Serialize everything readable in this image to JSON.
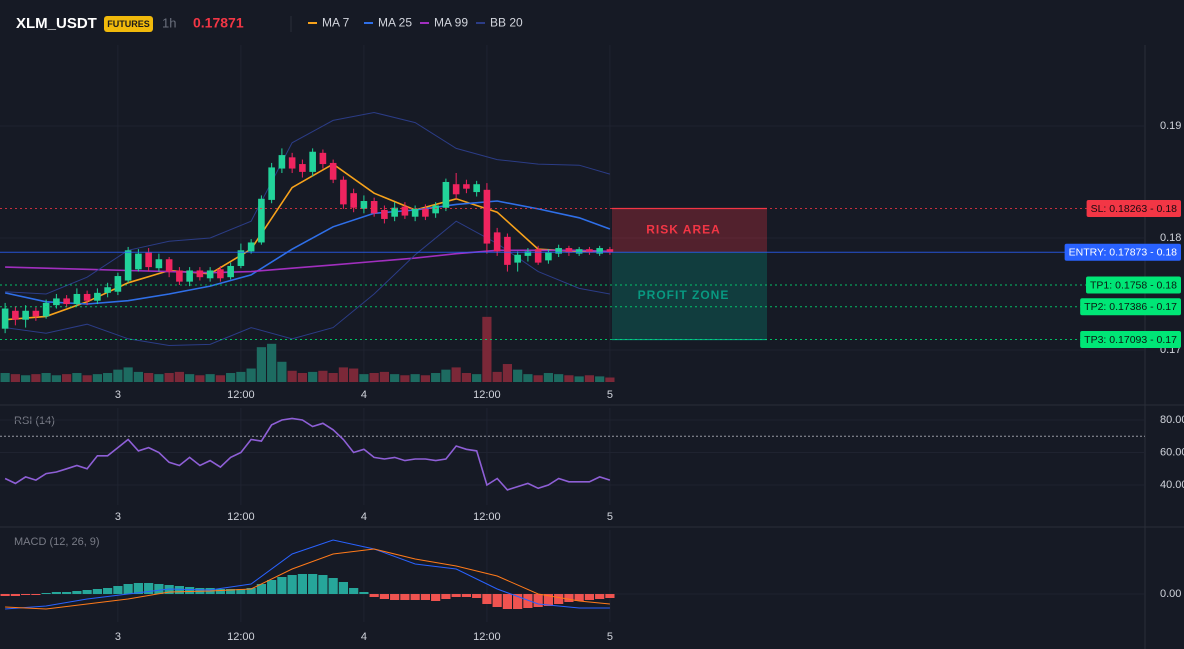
{
  "chart_data": [
    {
      "type": "candlestick",
      "title": "XLM_USDT",
      "badge": "FUTURES",
      "interval": "1h",
      "last_price": "0.17871",
      "xlim": [
        -0.5,
        111.2
      ],
      "xticks": [
        {
          "value": 11,
          "label": "3"
        },
        {
          "value": 23,
          "label": "12:00"
        },
        {
          "value": 35,
          "label": "4"
        },
        {
          "value": 47,
          "label": "12:00"
        },
        {
          "value": 59,
          "label": "5"
        }
      ],
      "ylim": [
        0.16714,
        0.19723
      ],
      "yticks": [
        0.17,
        0.18,
        0.19
      ],
      "grid": true,
      "colors": {
        "up": "#22d39a",
        "down": "#f0245f",
        "volume_up": "#1d6b61",
        "volume_down": "#7b2838"
      },
      "open": [
        0.1719,
        0.1735,
        0.1727,
        0.1735,
        0.173,
        0.174,
        0.1746,
        0.1741,
        0.175,
        0.1744,
        0.1751,
        0.1752,
        0.1762,
        0.1772,
        0.1787,
        0.1773,
        0.1781,
        0.1771,
        0.1761,
        0.1771,
        0.1764,
        0.1772,
        0.1765,
        0.1775,
        0.1788,
        0.1796,
        0.1834,
        0.1862,
        0.1872,
        0.1866,
        0.1859,
        0.1876,
        0.1867,
        0.1852,
        0.184,
        0.1826,
        0.1833,
        0.1825,
        0.1819,
        0.1828,
        0.1819,
        0.1826,
        0.1822,
        0.1827,
        0.1848,
        0.1848,
        0.1841,
        0.1843,
        0.1805,
        0.1801,
        0.1778,
        0.1784,
        0.179,
        0.178,
        0.1786,
        0.1791,
        0.1786,
        0.179,
        0.1786,
        0.179
      ],
      "high": [
        0.1742,
        0.1739,
        0.174,
        0.1738,
        0.1745,
        0.175,
        0.1749,
        0.1755,
        0.1753,
        0.1755,
        0.176,
        0.1769,
        0.1792,
        0.179,
        0.1791,
        0.1786,
        0.1783,
        0.1774,
        0.1774,
        0.1774,
        0.1774,
        0.1775,
        0.1778,
        0.1795,
        0.1799,
        0.1838,
        0.1867,
        0.188,
        0.1876,
        0.187,
        0.188,
        0.1879,
        0.187,
        0.1855,
        0.1844,
        0.1838,
        0.1836,
        0.1829,
        0.1832,
        0.1832,
        0.1829,
        0.183,
        0.1832,
        0.1853,
        0.1858,
        0.1852,
        0.1851,
        0.1849,
        0.1809,
        0.1804,
        0.1788,
        0.1791,
        0.1793,
        0.179,
        0.1794,
        0.1793,
        0.1792,
        0.1792,
        0.1793,
        0.1792
      ],
      "low": [
        0.1715,
        0.1722,
        0.172,
        0.1726,
        0.1728,
        0.1737,
        0.1738,
        0.1739,
        0.174,
        0.1741,
        0.1747,
        0.1749,
        0.176,
        0.177,
        0.177,
        0.177,
        0.1765,
        0.1758,
        0.1757,
        0.1762,
        0.1761,
        0.1761,
        0.1763,
        0.1773,
        0.1786,
        0.1794,
        0.1831,
        0.1858,
        0.1858,
        0.1854,
        0.1855,
        0.1862,
        0.1849,
        0.1826,
        0.1823,
        0.1822,
        0.1819,
        0.1813,
        0.1815,
        0.1817,
        0.1815,
        0.1816,
        0.1818,
        0.1824,
        0.1835,
        0.184,
        0.1837,
        0.1786,
        0.1784,
        0.177,
        0.177,
        0.1779,
        0.1776,
        0.1777,
        0.1783,
        0.1784,
        0.1784,
        0.1785,
        0.1784,
        0.1785
      ],
      "close": [
        0.1737,
        0.1727,
        0.1735,
        0.173,
        0.1742,
        0.1746,
        0.1741,
        0.175,
        0.1744,
        0.1751,
        0.1756,
        0.1766,
        0.1789,
        0.1786,
        0.1774,
        0.1781,
        0.177,
        0.1761,
        0.1771,
        0.1765,
        0.1771,
        0.1764,
        0.1775,
        0.1789,
        0.1796,
        0.1835,
        0.1863,
        0.1874,
        0.1862,
        0.1859,
        0.1877,
        0.1866,
        0.1852,
        0.183,
        0.1827,
        0.1833,
        0.1822,
        0.1817,
        0.1827,
        0.182,
        0.1826,
        0.1819,
        0.1829,
        0.185,
        0.1839,
        0.1844,
        0.1848,
        0.1795,
        0.1788,
        0.1776,
        0.1785,
        0.1788,
        0.1778,
        0.1787,
        0.1791,
        0.1787,
        0.179,
        0.1787,
        0.1791,
        0.17871
      ],
      "volume": [
        8,
        7,
        6,
        7,
        8,
        6,
        7,
        8,
        6,
        7,
        8,
        11,
        13,
        9,
        8,
        7,
        8,
        9,
        7,
        6,
        7,
        6,
        8,
        9,
        12,
        31,
        34,
        18,
        10,
        8,
        9,
        10,
        8,
        13,
        12,
        7,
        8,
        9,
        7,
        6,
        7,
        6,
        8,
        11,
        13,
        8,
        7,
        58,
        9,
        16,
        11,
        7,
        6,
        8,
        7,
        6,
        5,
        6,
        5,
        4
      ],
      "volume_ylim": [
        0,
        300
      ],
      "series": [
        {
          "name": "MA 7",
          "color": "#f7a21b",
          "x": [
            0,
            4,
            8,
            12,
            16,
            20,
            24,
            28,
            32,
            36,
            40,
            44,
            48,
            52,
            56,
            59
          ],
          "values": [
            0.1727,
            0.173,
            0.1743,
            0.176,
            0.1771,
            0.1768,
            0.179,
            0.1845,
            0.1866,
            0.184,
            0.1825,
            0.1835,
            0.1823,
            0.179,
            0.1788,
            0.1788
          ]
        },
        {
          "name": "MA 25",
          "color": "#2f6fe8",
          "x": [
            0,
            4,
            8,
            12,
            16,
            20,
            24,
            28,
            32,
            36,
            40,
            44,
            48,
            52,
            56,
            59
          ],
          "values": [
            0.1751,
            0.1743,
            0.1741,
            0.1744,
            0.175,
            0.1757,
            0.1767,
            0.179,
            0.181,
            0.1822,
            0.1825,
            0.183,
            0.1833,
            0.1826,
            0.1818,
            0.1808
          ]
        },
        {
          "name": "MA 99",
          "color": "#a12fbf",
          "x": [
            0,
            4,
            8,
            12,
            16,
            20,
            24,
            28,
            32,
            36,
            40,
            44,
            48,
            52,
            56,
            59
          ],
          "values": [
            0.1774,
            0.1773,
            0.1772,
            0.1771,
            0.177,
            0.1769,
            0.177,
            0.1773,
            0.1776,
            0.1779,
            0.1782,
            0.1786,
            0.1789,
            0.1789,
            0.1789,
            0.1788
          ]
        },
        {
          "name": "BB 20",
          "color": "#2b3c86",
          "x": [
            0,
            4,
            8,
            12,
            16,
            20,
            24,
            28,
            32,
            36,
            40,
            44,
            48,
            52,
            56,
            59
          ],
          "upper": [
            0.1752,
            0.175,
            0.1765,
            0.1789,
            0.1797,
            0.18,
            0.1815,
            0.1885,
            0.1905,
            0.1912,
            0.1903,
            0.188,
            0.187,
            0.1866,
            0.1865,
            0.1857
          ],
          "lower": [
            0.172,
            0.1715,
            0.1723,
            0.171,
            0.1704,
            0.1705,
            0.172,
            0.171,
            0.172,
            0.175,
            0.1785,
            0.1815,
            0.1795,
            0.177,
            0.1755,
            0.175
          ]
        }
      ],
      "levels": [
        {
          "label": "SL: 0.18263 - 0.18",
          "value": 0.18263,
          "color": "#f23645",
          "label_color": "#1a0a10",
          "style": "dotted"
        },
        {
          "label": "ENTRY: 0.17873 - 0.18",
          "value": 0.17873,
          "color": "#2962ff",
          "label_color": "#ffffff",
          "style": "solid"
        },
        {
          "label": "TP1: 0.1758 - 0.18",
          "value": 0.1758,
          "color": "#00e676",
          "label_color": "#0a1a12",
          "style": "dotted"
        },
        {
          "label": "TP2: 0.17386 - 0.17",
          "value": 0.17386,
          "color": "#00e676",
          "label_color": "#0a1a12",
          "style": "dotted"
        },
        {
          "label": "TP3: 0.17093 - 0.17",
          "value": 0.17093,
          "color": "#00e676",
          "label_color": "#0a1a12",
          "style": "dotted"
        }
      ],
      "zones": [
        {
          "label": "RISK AREA",
          "from": 0.17873,
          "to": 0.18263,
          "color": "#f23645"
        },
        {
          "label": "PROFIT ZONE",
          "from": 0.17873,
          "to": 0.17093,
          "color": "#089981"
        }
      ]
    },
    {
      "type": "line",
      "title": "RSI (14)",
      "color": "#8e5fd6",
      "xlim": [
        -0.5,
        111.2
      ],
      "xticks": [
        {
          "value": 11,
          "label": "3"
        },
        {
          "value": 23,
          "label": "12:00"
        },
        {
          "value": 35,
          "label": "4"
        },
        {
          "value": 47,
          "label": "12:00"
        },
        {
          "value": 59,
          "label": "5"
        }
      ],
      "ylim": [
        27.7,
        87.4
      ],
      "yticks": [
        {
          "value": 40,
          "label": "40.00"
        },
        {
          "value": 60,
          "label": "60.00"
        },
        {
          "value": 80,
          "label": "80.00"
        }
      ],
      "grid": true,
      "level": 70,
      "values": [
        44,
        41,
        45,
        43,
        47,
        48,
        50,
        52,
        50,
        58,
        58,
        63,
        68,
        61,
        63,
        60,
        54,
        52,
        57,
        52,
        55,
        51,
        57,
        60,
        68,
        67,
        77,
        80,
        81,
        80,
        76,
        78,
        74,
        68,
        60,
        62,
        57,
        56,
        57,
        55,
        56,
        56,
        55,
        56,
        64,
        62,
        61,
        40,
        44,
        37,
        39,
        41,
        38,
        40,
        44,
        42,
        42,
        42,
        45,
        43
      ]
    },
    {
      "type": "macd",
      "title": "MACD (12, 26, 9)",
      "xlim": [
        -0.5,
        111.2
      ],
      "xticks": [
        {
          "value": 11,
          "label": "3"
        },
        {
          "value": 23,
          "label": "12:00"
        },
        {
          "value": 35,
          "label": "4"
        },
        {
          "value": 47,
          "label": "12:00"
        },
        {
          "value": 59,
          "label": "5"
        }
      ],
      "ylim": [
        -0.00084,
        0.00192
      ],
      "yticks": [
        {
          "value": 0,
          "label": "0.00"
        }
      ],
      "grid": true,
      "colors": {
        "up": "#26a69a",
        "down": "#ef5350"
      },
      "histogram": [
        -6e-05,
        -6e-05,
        -3e-05,
        -3e-05,
        3e-05,
        6e-05,
        6e-05,
        9e-05,
        0.00012,
        0.00015,
        0.00018,
        0.00024,
        0.0003,
        0.00033,
        0.00033,
        0.0003,
        0.00027,
        0.00024,
        0.00021,
        0.00018,
        0.00018,
        0.00015,
        0.00015,
        0.00015,
        0.00018,
        0.0003,
        0.00042,
        0.00051,
        0.00057,
        0.0006,
        0.0006,
        0.00057,
        0.00048,
        0.00036,
        0.00018,
        6e-05,
        -9e-05,
        -0.00015,
        -0.00018,
        -0.00018,
        -0.00018,
        -0.00018,
        -0.00021,
        -0.00015,
        -9e-05,
        -9e-05,
        -0.00012,
        -0.0003,
        -0.00039,
        -0.00045,
        -0.00045,
        -0.00042,
        -0.00039,
        -0.00036,
        -0.0003,
        -0.00024,
        -0.00021,
        -0.00018,
        -0.00015,
        -0.00012
      ],
      "lines": [
        {
          "color": "#2962ff",
          "x": [
            0,
            4,
            8,
            12,
            16,
            20,
            24,
            28,
            32,
            36,
            40,
            44,
            48,
            52,
            56,
            59
          ],
          "values": [
            -0.00045,
            -0.00036,
            -0.00015,
            0,
            0.00015,
            0.00012,
            0.0003,
            0.0012,
            0.00162,
            0.00135,
            0.0009,
            0.00075,
            0.00015,
            -0.0003,
            -0.00042,
            -0.00042
          ]
        },
        {
          "color": "#ff7a1a",
          "x": [
            0,
            4,
            8,
            12,
            16,
            20,
            24,
            28,
            32,
            36,
            40,
            44,
            48,
            52,
            56,
            59
          ],
          "values": [
            -0.00039,
            -0.00045,
            -0.0003,
            -0.00015,
            6e-05,
            9e-05,
            0.00015,
            0.00075,
            0.0012,
            0.00135,
            0.00105,
            0.00084,
            0.00054,
            0,
            -0.00021,
            -0.0003
          ]
        }
      ]
    }
  ]
}
